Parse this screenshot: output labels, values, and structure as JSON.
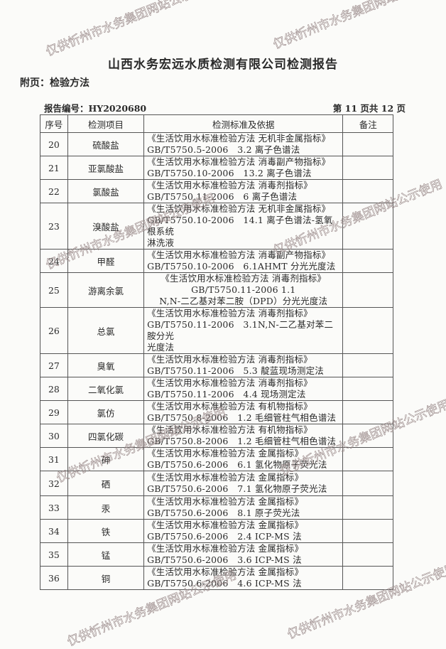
{
  "title": "山西水务宏远水质检测有限公司检测报告",
  "appendix": "附页：检验方法",
  "report_no": "报告编号：HY2020680",
  "page_no": "第 11 页共 12 页",
  "watermark": "仅供忻州市水务集团网站公示使用",
  "table": {
    "headers": [
      "序号",
      "检测项目",
      "检测标准及依据",
      "备注"
    ],
    "rows": [
      {
        "no": "20",
        "item": "硫酸盐",
        "std": [
          "《生活饮用水标准检验方法 无机非金属指标》",
          "GB/T5750.5-2006　3.2 离子色谱法"
        ],
        "note": ""
      },
      {
        "no": "21",
        "item": "亚氯酸盐",
        "std": [
          "《生活饮用水标准检验方法 消毒副产物指标》",
          "GB/T5750.10-2006　13.2 离子色谱法"
        ],
        "note": ""
      },
      {
        "no": "22",
        "item": "氯酸盐",
        "std": [
          "《生活饮用水标准检验方法 消毒剂指标》",
          "GB/T5750.11-2006　6 离子色谱法"
        ],
        "note": ""
      },
      {
        "no": "23",
        "item": "溴酸盐",
        "std": [
          "《生活饮用水标准检验方法 无机非金属指标》",
          "GB/T5750.10-2006　14.1 离子色谱法-氢氧根系统",
          "淋洗液"
        ],
        "note": ""
      },
      {
        "no": "24",
        "item": "甲醛",
        "std": [
          "《生活饮用水标准检验方法 消毒副产物指标》",
          "GB/T5750.10-2006　6.1AHMT 分光光度法"
        ],
        "note": ""
      },
      {
        "no": "25",
        "item": "游离余氯",
        "std": [
          "《生活饮用水标准检验方法 消毒剂指标》",
          "GB/T5750.11-2006 1.1",
          "N,N-二乙基对苯二胺（DPD）分光光度法"
        ],
        "note": "",
        "centered": true
      },
      {
        "no": "26",
        "item": "总氯",
        "std": [
          "《生活饮用水标准检验方法 消毒剂指标》",
          "GB/T5750.11-2006　3.1N,N-二乙基对苯二胺分光",
          "光度法"
        ],
        "note": ""
      },
      {
        "no": "27",
        "item": "臭氧",
        "std": [
          "《生活饮用水标准检验方法 消毒剂指标》",
          "GB/T5750.11-2006　5.3 靛蓝现场测定法"
        ],
        "note": ""
      },
      {
        "no": "28",
        "item": "二氧化氯",
        "std": [
          "《生活饮用水标准检验方法 消毒剂指标》",
          "GB/T5750.11-2006　4.4 现场测定法"
        ],
        "note": ""
      },
      {
        "no": "29",
        "item": "氯仿",
        "std": [
          "《生活饮用水标准检验方法 有机物指标》",
          "GB/T5750.8-2006　1.2 毛细管柱气相色谱法"
        ],
        "note": ""
      },
      {
        "no": "30",
        "item": "四氯化碳",
        "std": [
          "《生活饮用水标准检验方法 有机物指标》",
          "GB/T5750.8-2006　1.2 毛细管柱气相色谱法"
        ],
        "note": ""
      },
      {
        "no": "31",
        "item": "砷",
        "std": [
          "《生活饮用水标准检验方法 金属指标》",
          "GB/T5750.6-2006　6.1 氢化物原子荧光法"
        ],
        "note": ""
      },
      {
        "no": "32",
        "item": "硒",
        "std": [
          "《生活饮用水标准检验方法 金属指标》",
          "GB/T5750.6-2006　7.1 氢化物原子荧光法"
        ],
        "note": ""
      },
      {
        "no": "33",
        "item": "汞",
        "std": [
          "《生活饮用水标准检验方法 金属指标》",
          "GB/T5750.6-2006　8.1 原子荧光法"
        ],
        "note": ""
      },
      {
        "no": "34",
        "item": "铁",
        "std": [
          "《生活饮用水标准检验方法 金属指标》",
          "GB/T5750.6-2006　2.4 ICP-MS 法"
        ],
        "note": ""
      },
      {
        "no": "35",
        "item": "锰",
        "std": [
          "《生活饮用水标准检验方法 金属指标》",
          "GB/T5750.6-2006　3.6 ICP-MS 法"
        ],
        "note": ""
      },
      {
        "no": "36",
        "item": "铜",
        "std": [
          "《生活饮用水标准检验方法 金属指标》",
          "GB/T5750.6-2006　4.6 ICP-MS 法"
        ],
        "note": ""
      }
    ]
  }
}
